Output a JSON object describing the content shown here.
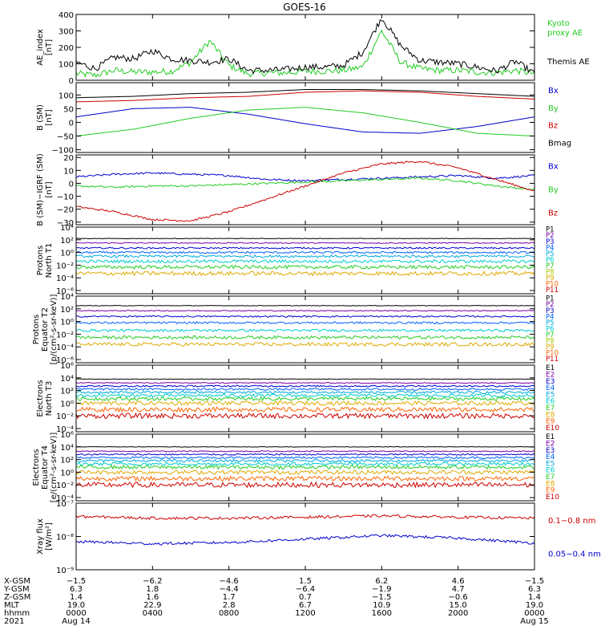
{
  "title": "GOES-16",
  "chart_data": {
    "type": "line",
    "x_range_hours": [
      0,
      24
    ],
    "panels": [
      {
        "id": "ae",
        "ylabel": [
          "AE_index",
          "[nT]"
        ],
        "scale": "linear",
        "ylim": [
          0,
          400
        ],
        "ticks": [
          0,
          100,
          200,
          300,
          400
        ],
        "tick_labels": [
          "0",
          "100",
          "200",
          "300",
          "400"
        ],
        "series": [
          {
            "name": "Kyoto proxy AE",
            "color": "#22cc22",
            "x": [
              0,
              1,
              2,
              3,
              4,
              5,
              6,
              7,
              8,
              9,
              10,
              11,
              12,
              13,
              14,
              15,
              16,
              17,
              18,
              19,
              20,
              21,
              22,
              23,
              24
            ],
            "values": [
              40,
              30,
              60,
              50,
              50,
              55,
              110,
              240,
              90,
              40,
              45,
              45,
              55,
              55,
              60,
              80,
              300,
              110,
              70,
              60,
              60,
              50,
              45,
              60,
              40
            ]
          },
          {
            "name": "Themis AE",
            "color": "#000000",
            "x": [
              0,
              1,
              2,
              3,
              4,
              5,
              6,
              7,
              8,
              9,
              10,
              11,
              12,
              13,
              14,
              15,
              16,
              17,
              18,
              19,
              20,
              21,
              22,
              23,
              24
            ],
            "values": [
              110,
              70,
              140,
              130,
              180,
              130,
              120,
              110,
              130,
              60,
              60,
              65,
              80,
              80,
              90,
              170,
              380,
              210,
              120,
              110,
              100,
              80,
              55,
              115,
              40
            ]
          }
        ]
      },
      {
        "id": "bsm",
        "ylabel": [
          "B (SM)",
          "[nT]"
        ],
        "scale": "linear",
        "ylim": [
          -110,
          145
        ],
        "ticks": [
          -100,
          -50,
          0,
          50,
          100
        ],
        "tick_labels": [
          "−100",
          "−50",
          "0",
          "50",
          "100"
        ],
        "series": [
          {
            "name": "Bx",
            "color": "#0000cc",
            "x": [
              0,
              3,
              6,
              9,
              12,
              15,
              18,
              21,
              24
            ],
            "values": [
              20,
              50,
              55,
              30,
              -5,
              -35,
              -40,
              -15,
              20
            ]
          },
          {
            "name": "By",
            "color": "#22cc22",
            "x": [
              0,
              3,
              6,
              9,
              12,
              15,
              18,
              21,
              24
            ],
            "values": [
              -50,
              -25,
              15,
              45,
              55,
              35,
              0,
              -40,
              -50
            ]
          },
          {
            "name": "Bz",
            "color": "#cc0000",
            "x": [
              0,
              3,
              6,
              9,
              12,
              15,
              18,
              21,
              24
            ],
            "values": [
              75,
              80,
              90,
              95,
              110,
              115,
              110,
              95,
              85
            ]
          },
          {
            "name": "Bmag",
            "color": "#000000",
            "x": [
              0,
              3,
              6,
              9,
              12,
              15,
              18,
              21,
              24
            ],
            "values": [
              90,
              95,
              105,
              110,
              120,
              120,
              115,
              105,
              95
            ]
          }
        ]
      },
      {
        "id": "bigrf",
        "ylabel": [
          "B (SM)−IGRF (SM)",
          "[nT]"
        ],
        "scale": "linear",
        "ylim": [
          -32,
          22
        ],
        "ticks": [
          -30,
          -20,
          -10,
          0,
          10,
          20
        ],
        "tick_labels": [
          "−30",
          "−20",
          "−10",
          "0",
          "10",
          "20"
        ],
        "series": [
          {
            "name": "Bx",
            "color": "#0000cc",
            "x": [
              0,
              2,
              4,
              6,
              8,
              10,
              12,
              14,
              16,
              18,
              20,
              22,
              24
            ],
            "values": [
              5,
              7,
              8,
              7,
              6,
              3,
              2,
              3,
              4,
              5,
              6,
              4,
              6
            ]
          },
          {
            "name": "By",
            "color": "#22cc22",
            "x": [
              0,
              2,
              4,
              6,
              8,
              10,
              12,
              14,
              16,
              18,
              20,
              22,
              24
            ],
            "values": [
              -2,
              -3,
              -2,
              -2,
              -1,
              0,
              1,
              2,
              3,
              4,
              2,
              -2,
              -5
            ]
          },
          {
            "name": "Bz",
            "color": "#cc0000",
            "x": [
              0,
              2,
              4,
              6,
              8,
              10,
              12,
              14,
              16,
              18,
              20,
              22,
              24
            ],
            "values": [
              -18,
              -22,
              -28,
              -29,
              -22,
              -12,
              -2,
              8,
              15,
              17,
              12,
              3,
              -6
            ]
          }
        ]
      },
      {
        "id": "p_t1",
        "ylabel": [
          "Protons",
          "North T1"
        ],
        "scale": "log",
        "ylim": [
          -6.5,
          4
        ],
        "ticks": [
          -6,
          -4,
          -2,
          0,
          2,
          4
        ],
        "tick_labels": [
          "10⁻⁶",
          "10⁻⁴",
          "10⁻²",
          "10⁰",
          "10²",
          "10⁴"
        ],
        "legend": [
          "P1",
          "P2",
          "P3",
          "P4",
          "P5",
          "P6",
          "P7",
          "P8",
          "P9",
          "P10",
          "P11"
        ],
        "legend_colors": [
          "#000000",
          "#7a00aa",
          "#0000cc",
          "#0060ff",
          "#00aadd",
          "#00cccc",
          "#22cc22",
          "#aacc00",
          "#ddaa00",
          "#ff6600",
          "#cc0000"
        ],
        "series": [
          {
            "name": "P1",
            "color": "#000000",
            "values": [
              2.2
            ]
          },
          {
            "name": "P2",
            "color": "#7a00aa",
            "values": [
              1.5
            ]
          },
          {
            "name": "P3",
            "color": "#0000cc",
            "values": [
              0.7
            ]
          },
          {
            "name": "P4",
            "color": "#0060ff",
            "values": [
              0.0
            ]
          },
          {
            "name": "P5",
            "color": "#00aadd",
            "values": [
              -0.6
            ]
          },
          {
            "name": "P6",
            "color": "#00cccc",
            "values": [
              -1.4
            ]
          },
          {
            "name": "P7",
            "color": "#22cc22",
            "values": [
              -2.3
            ]
          },
          {
            "name": "P8",
            "color": "#ddaa00",
            "values": [
              -3.3
            ]
          }
        ]
      },
      {
        "id": "p_t2",
        "ylabel": [
          "Protons",
          "Equator T2",
          "[p/(cm²-s-sr-keV)]"
        ],
        "scale": "log",
        "ylim": [
          -6.5,
          4
        ],
        "ticks": [
          -6,
          -4,
          -2,
          0,
          2,
          4
        ],
        "tick_labels": [
          "10⁻⁶",
          "10⁻⁴",
          "10⁻²",
          "10⁰",
          "10²",
          "10⁴"
        ],
        "legend": [
          "P1",
          "P2",
          "P3",
          "P4",
          "P5",
          "P6",
          "P7",
          "P8",
          "P9",
          "P10",
          "P11"
        ],
        "legend_colors": [
          "#000000",
          "#7a00aa",
          "#0000cc",
          "#0060ff",
          "#00aadd",
          "#00cccc",
          "#22cc22",
          "#aacc00",
          "#ddaa00",
          "#ff6600",
          "#cc0000"
        ],
        "series": [
          {
            "name": "P1",
            "color": "#000000",
            "values": [
              2.5
            ]
          },
          {
            "name": "P2",
            "color": "#7a00aa",
            "values": [
              1.7
            ]
          },
          {
            "name": "P3",
            "color": "#0000cc",
            "values": [
              0.8
            ]
          },
          {
            "name": "P4",
            "color": "#0060ff",
            "values": [
              -0.2
            ]
          },
          {
            "name": "P5",
            "color": "#00cccc",
            "values": [
              -1.4
            ]
          },
          {
            "name": "P6",
            "color": "#22cc22",
            "values": [
              -2.5
            ]
          },
          {
            "name": "P7",
            "color": "#ddaa00",
            "values": [
              -3.6
            ]
          }
        ]
      },
      {
        "id": "e_t3",
        "ylabel": [
          "Electrons",
          "North T3"
        ],
        "scale": "log",
        "ylim": [
          -4.5,
          6
        ],
        "ticks": [
          -4,
          -2,
          0,
          2,
          4,
          6
        ],
        "tick_labels": [
          "10⁻⁴",
          "10⁻²",
          "10⁰",
          "10²",
          "10⁴",
          "10⁶"
        ],
        "legend": [
          "E1",
          "E2",
          "E3",
          "E4",
          "E5",
          "E6",
          "E7",
          "E8",
          "E9",
          "E10"
        ],
        "legend_colors": [
          "#000000",
          "#7a00aa",
          "#0000cc",
          "#0060ff",
          "#00aadd",
          "#00cccc",
          "#22cc22",
          "#ddaa00",
          "#ff6600",
          "#cc0000"
        ],
        "series": [
          {
            "name": "E1",
            "color": "#000000",
            "values": [
              3.8
            ]
          },
          {
            "name": "E2",
            "color": "#7a00aa",
            "values": [
              3.2
            ]
          },
          {
            "name": "E3",
            "color": "#0000cc",
            "values": [
              2.7
            ]
          },
          {
            "name": "E4",
            "color": "#0060ff",
            "values": [
              2.2
            ]
          },
          {
            "name": "E5",
            "color": "#00aadd",
            "values": [
              1.7
            ]
          },
          {
            "name": "E6",
            "color": "#00cccc",
            "values": [
              1.2
            ]
          },
          {
            "name": "E7",
            "color": "#22cc22",
            "values": [
              0.7
            ]
          },
          {
            "name": "E8",
            "color": "#ddaa00",
            "values": [
              0.0
            ]
          },
          {
            "name": "E9",
            "color": "#ff6600",
            "values": [
              -1.0
            ]
          },
          {
            "name": "E10",
            "color": "#cc0000",
            "values": [
              -2.0
            ]
          }
        ]
      },
      {
        "id": "e_t4",
        "ylabel": [
          "Electrons",
          "Equator T4",
          "[e/(cm²-s-sr-keV)]"
        ],
        "scale": "log",
        "ylim": [
          -4.5,
          6
        ],
        "ticks": [
          -4,
          -2,
          0,
          2,
          4,
          6
        ],
        "tick_labels": [
          "10⁻⁴",
          "10⁻²",
          "10⁰",
          "10²",
          "10⁴",
          "10⁶"
        ],
        "legend": [
          "E1",
          "E2",
          "E3",
          "E4",
          "E5",
          "E6",
          "E7",
          "E8",
          "E9",
          "E10"
        ],
        "legend_colors": [
          "#000000",
          "#7a00aa",
          "#0000cc",
          "#0060ff",
          "#00aadd",
          "#00cccc",
          "#22cc22",
          "#ddaa00",
          "#ff6600",
          "#cc0000"
        ],
        "series": [
          {
            "name": "E1",
            "color": "#000000",
            "values": [
              4.0
            ]
          },
          {
            "name": "E2",
            "color": "#7a00aa",
            "values": [
              3.3
            ]
          },
          {
            "name": "E3",
            "color": "#0000cc",
            "values": [
              2.8
            ]
          },
          {
            "name": "E4",
            "color": "#0060ff",
            "values": [
              2.3
            ]
          },
          {
            "name": "E5",
            "color": "#00aadd",
            "values": [
              1.8
            ]
          },
          {
            "name": "E6",
            "color": "#00cccc",
            "values": [
              1.3
            ]
          },
          {
            "name": "E7",
            "color": "#22cc22",
            "values": [
              0.8
            ]
          },
          {
            "name": "E8",
            "color": "#ddaa00",
            "values": [
              0.0
            ]
          },
          {
            "name": "E9",
            "color": "#ff6600",
            "values": [
              -1.0
            ]
          },
          {
            "name": "E10",
            "color": "#cc0000",
            "values": [
              -2.0
            ]
          }
        ]
      },
      {
        "id": "xray",
        "ylabel": [
          "Xray flux",
          "[W/m²]"
        ],
        "scale": "log",
        "ylim": [
          -9,
          -7
        ],
        "ticks": [
          -9,
          -8,
          -7
        ],
        "tick_labels": [
          "10⁻⁹",
          "10⁻⁸",
          "10⁻⁷"
        ],
        "series": [
          {
            "name": "0.1−0.8 nm",
            "color": "#cc0000",
            "x": [
              0,
              4,
              8,
              12,
              16,
              20,
              24
            ],
            "values": [
              -7.4,
              -7.45,
              -7.45,
              -7.42,
              -7.38,
              -7.42,
              -7.45
            ]
          },
          {
            "name": "0.05−0.4 nm",
            "color": "#0000cc",
            "x": [
              0,
              4,
              8,
              12,
              16,
              20,
              24
            ],
            "values": [
              -8.15,
              -8.22,
              -8.18,
              -8.08,
              -7.97,
              -8.05,
              -8.2
            ]
          }
        ]
      }
    ],
    "x_axis": {
      "row_labels": [
        "X-GSM",
        "Y-GSM",
        "Z-GSM",
        "MLT",
        "hhmm",
        "2021"
      ],
      "columns": [
        {
          "x": 0,
          "vals": [
            "−1.5",
            "6.3",
            "1.4",
            "19.0",
            "0000",
            "Aug 14"
          ]
        },
        {
          "x": 4,
          "vals": [
            "−6.2",
            "1.8",
            "1.6",
            "22.9",
            "0400",
            ""
          ]
        },
        {
          "x": 8,
          "vals": [
            "−4.6",
            "−4.4",
            "1.7",
            "2.8",
            "0800",
            ""
          ]
        },
        {
          "x": 12,
          "vals": [
            "1.5",
            "−6.4",
            "0.7",
            "6.7",
            "1200",
            ""
          ]
        },
        {
          "x": 16,
          "vals": [
            "6.2",
            "−1.9",
            "−1.5",
            "10.9",
            "1600",
            ""
          ]
        },
        {
          "x": 20,
          "vals": [
            "4.6",
            "4.7",
            "−0.6",
            "15.0",
            "2000",
            ""
          ]
        },
        {
          "x": 24,
          "vals": [
            "−1.5",
            "6.3",
            "1.4",
            "19.0",
            "0000",
            "Aug 15"
          ]
        }
      ]
    },
    "right_labels": {
      "ae": [
        {
          "text": "Kyoto",
          "color": "#22cc22"
        },
        {
          "text": "proxy AE",
          "color": "#22cc22"
        },
        {
          "text": "Themis AE",
          "color": "#000000"
        }
      ],
      "bsm": [
        {
          "text": "Bx",
          "color": "#0000cc"
        },
        {
          "text": "By",
          "color": "#22cc22"
        },
        {
          "text": "Bz",
          "color": "#cc0000"
        },
        {
          "text": "Bmag",
          "color": "#000000"
        }
      ],
      "bigrf": [
        {
          "text": "Bx",
          "color": "#0000cc"
        },
        {
          "text": "By",
          "color": "#22cc22"
        },
        {
          "text": "Bz",
          "color": "#cc0000"
        }
      ],
      "xray": [
        {
          "text": "0.1−0.8 nm",
          "color": "#cc0000"
        },
        {
          "text": "0.05−0.4 nm",
          "color": "#0000cc"
        }
      ]
    }
  }
}
